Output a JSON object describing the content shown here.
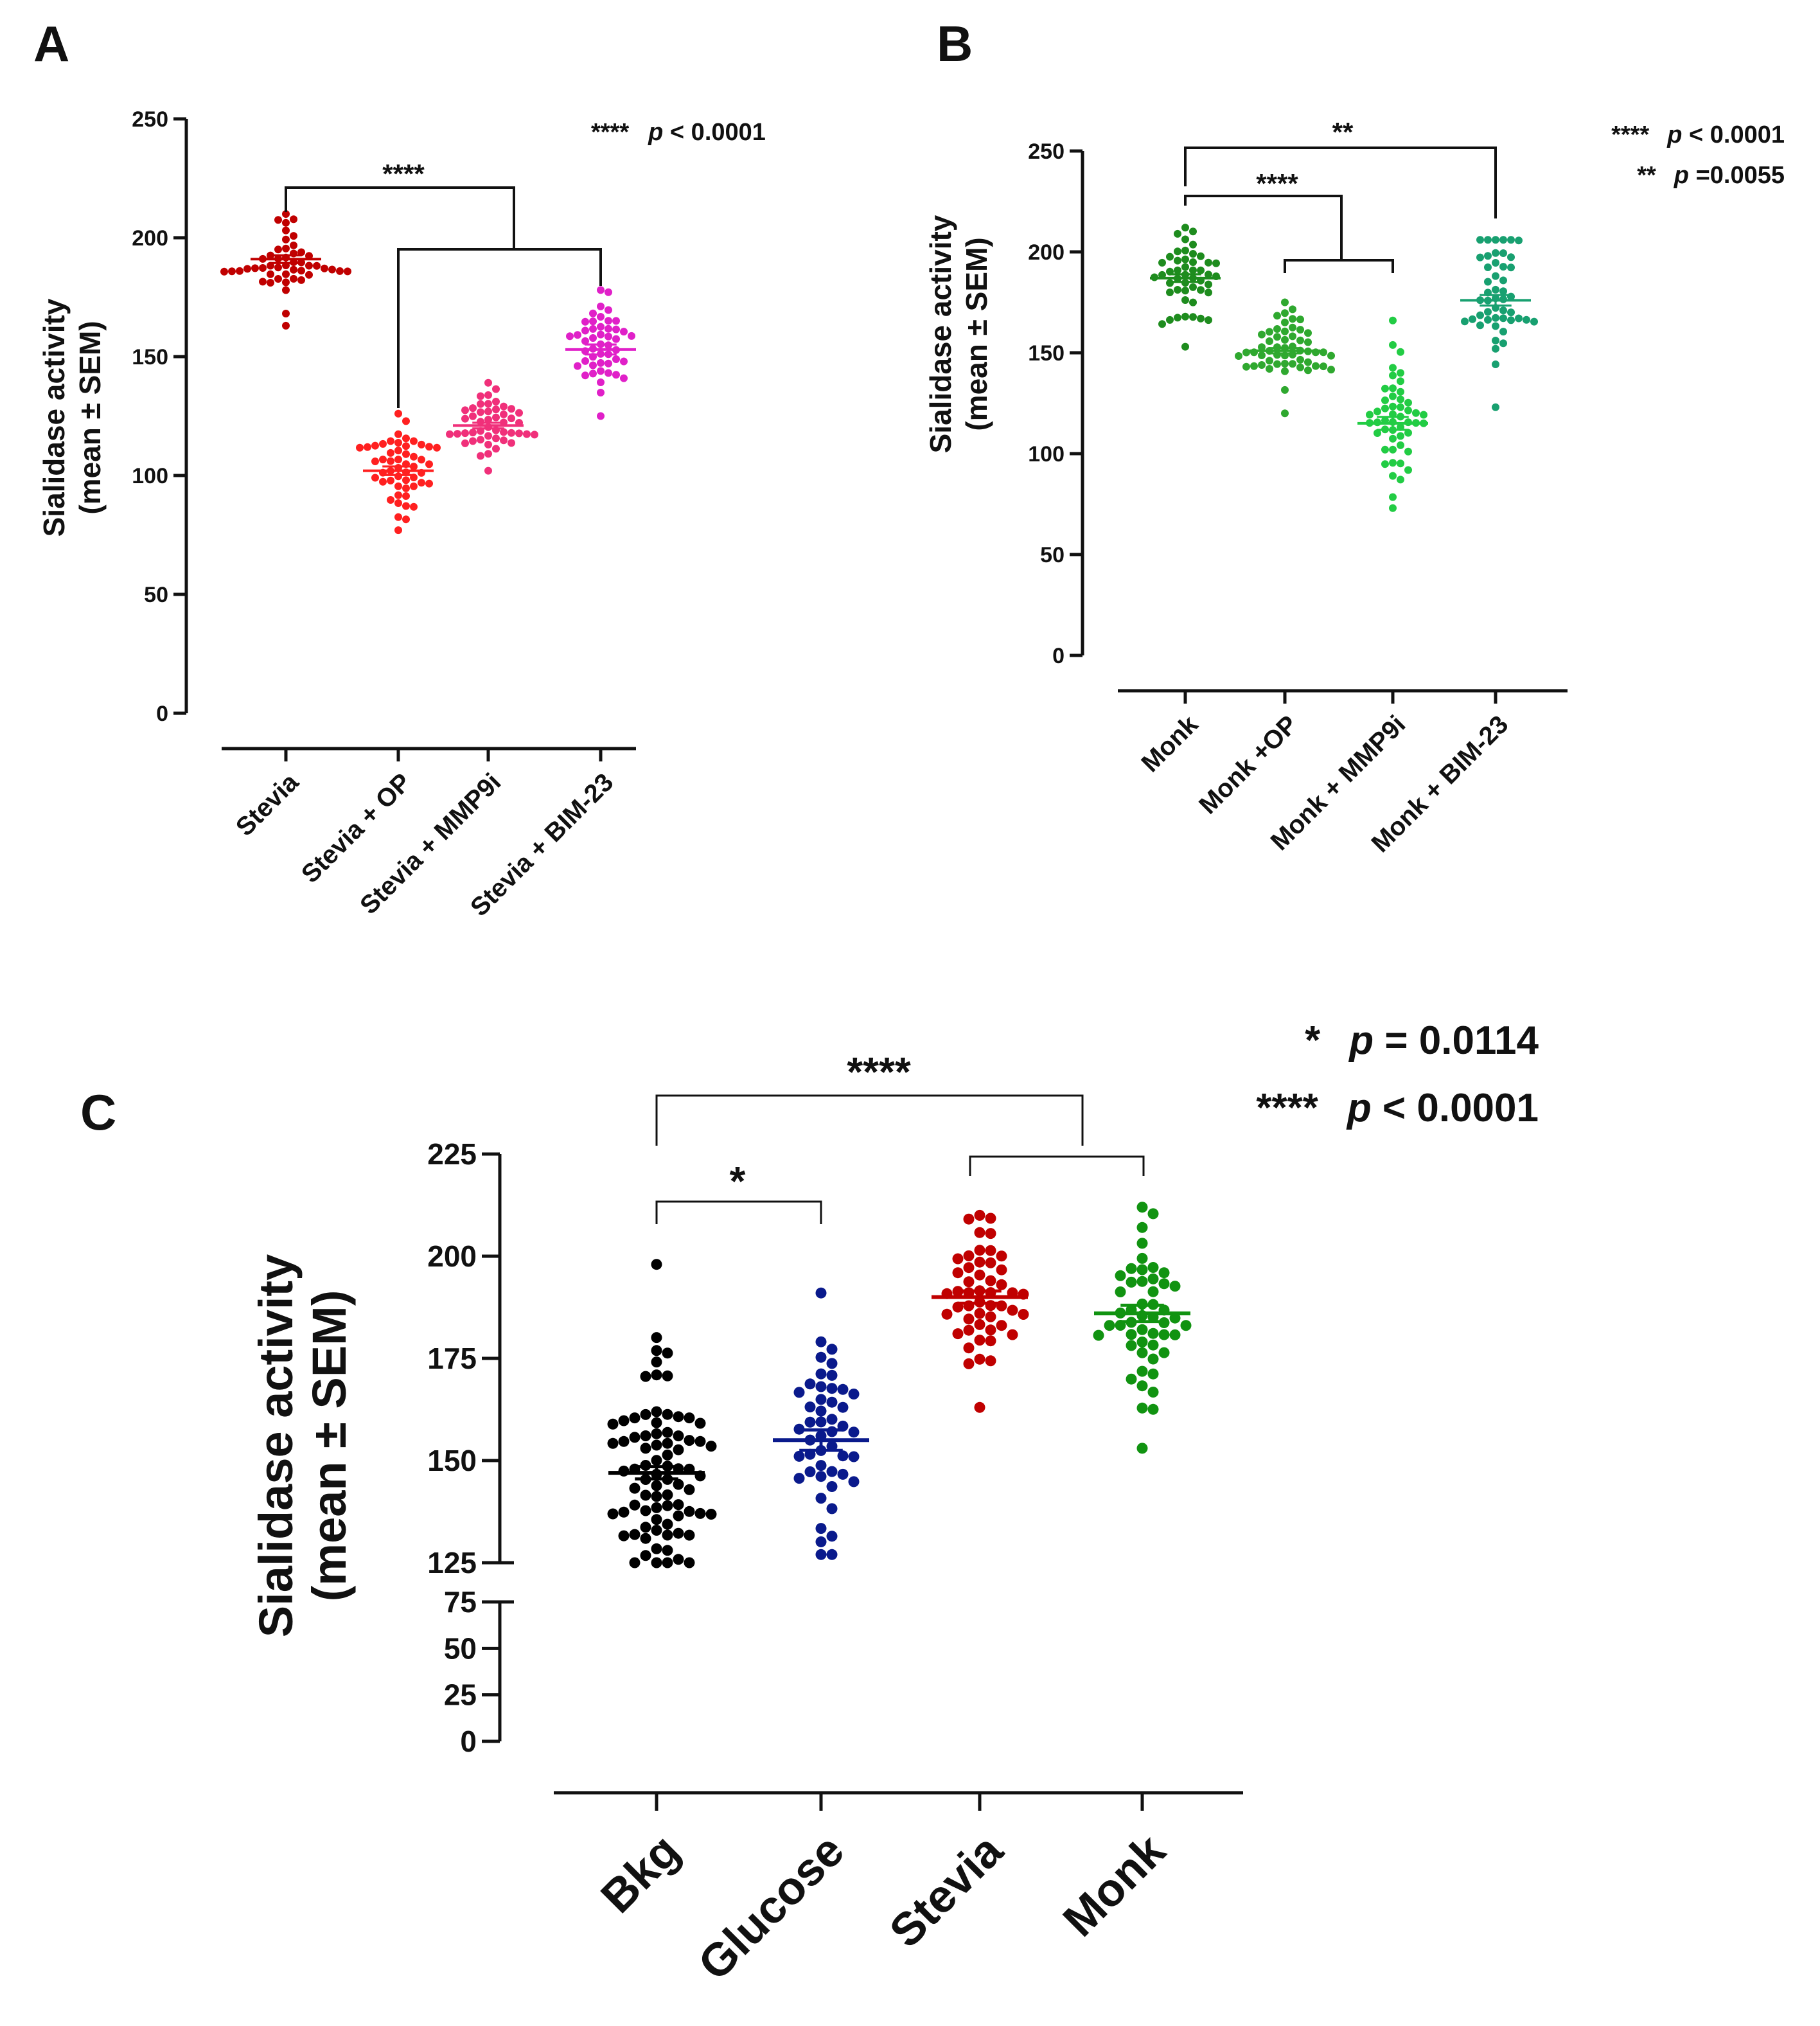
{
  "chart_data": [
    {
      "panel": "A",
      "type": "scatter",
      "ylabel_line1": "Sialidase activity",
      "ylabel_line2": "(mean ± SEM)",
      "ylim": [
        0,
        250
      ],
      "yticks": [
        0,
        50,
        100,
        150,
        200,
        250
      ],
      "categories": [
        "Stevia",
        "Stevia + OP",
        "Stevia + MMP9i",
        "Stevia + BIM-23"
      ],
      "colors": [
        "#c00000",
        "#ff2020",
        "#f0307a",
        "#e020c8"
      ],
      "groups": [
        {
          "name": "Stevia",
          "mean": 191,
          "sem": 1.6,
          "min": 163,
          "max": 210,
          "n": 48
        },
        {
          "name": "Stevia + OP",
          "mean": 102,
          "sem": 1.8,
          "min": 77,
          "max": 126,
          "n": 52
        },
        {
          "name": "Stevia + MMP9i",
          "mean": 121,
          "sem": 1.2,
          "min": 102,
          "max": 139,
          "n": 48
        },
        {
          "name": "Stevia + BIM-23",
          "mean": 153,
          "sem": 2.1,
          "min": 125,
          "max": 178,
          "n": 48
        }
      ],
      "significance": [
        {
          "label": "****",
          "note_stars": "****",
          "note_p": "p",
          "note_text": " < 0.0001"
        }
      ]
    },
    {
      "panel": "B",
      "type": "scatter",
      "ylabel_line1": "Sialidase activity",
      "ylabel_line2": "(mean ± SEM)",
      "ylim": [
        0,
        250
      ],
      "yticks": [
        0,
        50,
        100,
        150,
        200,
        250
      ],
      "categories": [
        "Monk",
        "Monk +OP",
        "Monk + MMP9i",
        "Monk + BIM-23"
      ],
      "colors": [
        "#1e8c1e",
        "#2fa82f",
        "#22cc44",
        "#18a070"
      ],
      "groups": [
        {
          "name": "Monk",
          "mean": 187,
          "sem": 1.9,
          "min": 153,
          "max": 212,
          "n": 48
        },
        {
          "name": "Monk +OP",
          "mean": 151,
          "sem": 1.3,
          "min": 120,
          "max": 175,
          "n": 55
        },
        {
          "name": "Monk + MMP9i",
          "mean": 115,
          "sem": 3.2,
          "min": 73,
          "max": 166,
          "n": 50
        },
        {
          "name": "Monk + BIM-23",
          "mean": 176,
          "sem": 2.6,
          "min": 123,
          "max": 206,
          "n": 48
        }
      ],
      "significance": [
        {
          "label": "**",
          "note_stars": "**",
          "note_p": "p",
          "note_text": " =0.0055"
        },
        {
          "label": "****",
          "note_stars": "****",
          "note_p": "p",
          "note_text": " < 0.0001"
        }
      ]
    },
    {
      "panel": "C",
      "type": "scatter",
      "ylabel_line1": "Sialidase activity",
      "ylabel_line2": "(mean ± SEM)",
      "ylim_lower": [
        0,
        75
      ],
      "ylim_upper": [
        125,
        225
      ],
      "yticks_lower": [
        0,
        25,
        50,
        75
      ],
      "yticks_upper": [
        125,
        150,
        175,
        200,
        225
      ],
      "categories": [
        "Bkg",
        "Glucose",
        "Stevia",
        "Monk"
      ],
      "colors": [
        "#000000",
        "#0a1a8c",
        "#c00000",
        "#119311"
      ],
      "groups": [
        {
          "name": "Bkg",
          "mean": 147,
          "sem": 1.5,
          "min": 125,
          "max": 198,
          "n": 80
        },
        {
          "name": "Glucose",
          "mean": 155,
          "sem": 2.5,
          "min": 127,
          "max": 191,
          "n": 48
        },
        {
          "name": "Stevia",
          "mean": 190,
          "sem": 1.5,
          "min": 163,
          "max": 210,
          "n": 50
        },
        {
          "name": "Monk",
          "mean": 186,
          "sem": 2.0,
          "min": 153,
          "max": 212,
          "n": 50
        }
      ],
      "significance": [
        {
          "label": "*",
          "note_stars": "*",
          "note_p": "p",
          "note_text": " = 0.0114"
        },
        {
          "label": "****",
          "note_stars": "****",
          "note_p": "p",
          "note_text": " < 0.0001"
        }
      ]
    }
  ]
}
